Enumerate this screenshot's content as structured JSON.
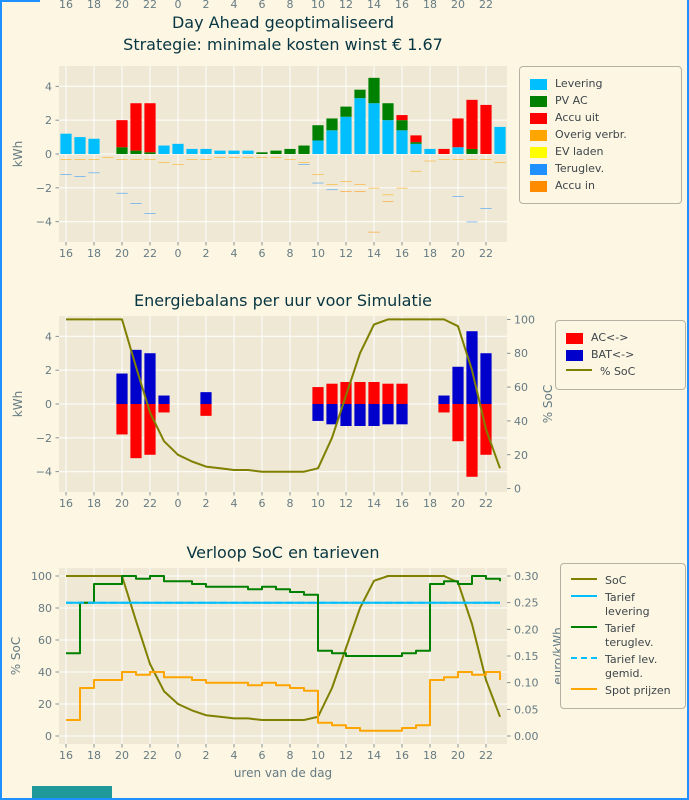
{
  "window": {
    "border_color": "#1e90ff",
    "partial_button_color": "#20999b"
  },
  "figure": {
    "bg": "#fdf6e3",
    "axes_bg": "#eee8d5",
    "grid_color": "#ffffff",
    "text_color": "#657b83",
    "title_color": "#073642"
  },
  "top_cropped_axis": {
    "tick_labels": [
      "16",
      "18",
      "20",
      "22",
      "0",
      "2",
      "4",
      "6",
      "8",
      "10",
      "12",
      "14",
      "16",
      "18",
      "20",
      "22"
    ]
  },
  "chart_data": [
    {
      "type": "bar",
      "stacked": true,
      "title": "Day Ahead geoptimaliseerd",
      "subtitle": "Strategie: minimale kosten winst € 1.67",
      "ylabel": "kWh",
      "ylim": [
        -5.2,
        5.2
      ],
      "yticks": [
        -4,
        -2,
        0,
        2,
        4
      ],
      "hours": [
        16,
        17,
        18,
        19,
        20,
        21,
        22,
        23,
        0,
        1,
        2,
        3,
        4,
        5,
        6,
        7,
        8,
        9,
        10,
        11,
        12,
        13,
        14,
        15,
        16,
        17,
        18,
        19,
        20,
        21,
        22,
        23
      ],
      "xtick_labels": [
        "16",
        "18",
        "20",
        "22",
        "0",
        "2",
        "4",
        "6",
        "8",
        "10",
        "12",
        "14",
        "16",
        "18",
        "20",
        "22"
      ],
      "series": [
        {
          "name": "Levering",
          "color": "#00bfff",
          "values": [
            1.2,
            1.0,
            0.9,
            0,
            0,
            0,
            0,
            0.5,
            0.6,
            0.3,
            0.3,
            0.2,
            0.2,
            0.2,
            0,
            0,
            0,
            0,
            0.8,
            1.4,
            2.2,
            3.3,
            3.0,
            2.0,
            1.4,
            0.6,
            0.3,
            0,
            0.4,
            0,
            0,
            1.6
          ]
        },
        {
          "name": "PV AC",
          "color": "#008000",
          "values": [
            0,
            0,
            0,
            0,
            0.4,
            0.2,
            0.1,
            0,
            0,
            0,
            0,
            0,
            0,
            0,
            0.1,
            0.2,
            0.3,
            0.5,
            0.9,
            0.7,
            0.6,
            0.5,
            1.5,
            1.0,
            0.6,
            0.1,
            0,
            0,
            0,
            0.3,
            0,
            0
          ]
        },
        {
          "name": "Accu uit",
          "color": "#ff0000",
          "values": [
            0,
            0,
            0,
            0,
            1.6,
            2.8,
            2.9,
            0,
            0,
            0,
            0,
            0,
            0,
            0,
            0,
            0,
            0,
            0,
            0,
            0,
            0,
            0,
            0,
            0,
            0.3,
            0.4,
            0,
            0.3,
            1.7,
            2.9,
            2.9,
            0
          ]
        },
        {
          "name": "Overig verbr.",
          "color": "#ffa500",
          "values": [
            -0.3,
            -0.3,
            -0.3,
            -0.2,
            -0.3,
            -0.3,
            -0.3,
            -0.5,
            -0.6,
            -0.3,
            -0.3,
            -0.2,
            -0.2,
            -0.2,
            -0.2,
            -0.2,
            -0.3,
            -0.5,
            -1.2,
            -1.8,
            -1.6,
            -1.8,
            -2.0,
            -2.4,
            -2.0,
            -1.0,
            -0.4,
            -0.3,
            -0.3,
            -0.3,
            -0.3,
            -0.5
          ]
        },
        {
          "name": "EV laden",
          "color": "#ffff00",
          "values": [
            0,
            0,
            0,
            0,
            0,
            0,
            0,
            0,
            0,
            0,
            0,
            0,
            0,
            0,
            0,
            0,
            0,
            0,
            0,
            0,
            0,
            0,
            0,
            0,
            0,
            0,
            0,
            0,
            0,
            0,
            0,
            0
          ]
        },
        {
          "name": "Teruglev.",
          "color": "#1e90ff",
          "values": [
            -0.9,
            -1.0,
            -0.8,
            0,
            -2.0,
            -2.6,
            -3.2,
            0,
            0,
            0,
            0,
            0,
            0,
            0,
            0,
            0,
            0,
            -0.1,
            -0.5,
            -0.3,
            0,
            0,
            0,
            0,
            0,
            0,
            0,
            0,
            -2.2,
            -3.7,
            -2.9,
            0
          ]
        },
        {
          "name": "Accu in",
          "color": "#ff8c00",
          "values": [
            0,
            0,
            0,
            0,
            0,
            0,
            0,
            0,
            0,
            0,
            0,
            0,
            0,
            0,
            0,
            0,
            0,
            0,
            0,
            0,
            -0.6,
            -0.4,
            -2.6,
            -0.4,
            0,
            0,
            0,
            0,
            0,
            0,
            0,
            0
          ]
        }
      ]
    },
    {
      "type": "bar+line",
      "title": "Energiebalans per uur voor Simulatie",
      "ylabel": "kWh",
      "ylabel_right": "% SoC",
      "ylim": [
        -5.2,
        5.2
      ],
      "yticks": [
        -4,
        -2,
        0,
        2,
        4
      ],
      "ylim_right": [
        -2,
        102
      ],
      "yticks_right": [
        0,
        20,
        40,
        60,
        80,
        100
      ],
      "hours": [
        16,
        17,
        18,
        19,
        20,
        21,
        22,
        23,
        0,
        1,
        2,
        3,
        4,
        5,
        6,
        7,
        8,
        9,
        10,
        11,
        12,
        13,
        14,
        15,
        16,
        17,
        18,
        19,
        20,
        21,
        22,
        23
      ],
      "xtick_labels": [
        "16",
        "18",
        "20",
        "22",
        "0",
        "2",
        "4",
        "6",
        "8",
        "10",
        "12",
        "14",
        "16",
        "18",
        "20",
        "22"
      ],
      "series": [
        {
          "name": "AC<->",
          "color": "#ff0000",
          "type": "bar",
          "values": [
            0,
            0,
            0,
            0,
            -1.8,
            -3.2,
            -3.0,
            -0.5,
            0,
            0,
            -0.7,
            0,
            0,
            0,
            0,
            0,
            0,
            0,
            1.0,
            1.2,
            1.3,
            1.3,
            1.3,
            1.2,
            1.2,
            0,
            0,
            -0.5,
            -2.2,
            -4.3,
            -3.0,
            0
          ]
        },
        {
          "name": "BAT<->",
          "color": "#0000cd",
          "type": "bar",
          "values": [
            0,
            0,
            0,
            0,
            1.8,
            3.2,
            3.0,
            0.5,
            0,
            0,
            0.7,
            0,
            0,
            0,
            0,
            0,
            0,
            0,
            -1.0,
            -1.2,
            -1.3,
            -1.3,
            -1.3,
            -1.2,
            -1.2,
            0,
            0,
            0.5,
            2.2,
            4.3,
            3.0,
            0
          ]
        },
        {
          "name": "% SoC",
          "color": "#808000",
          "type": "line",
          "axis": "right",
          "values": [
            100,
            100,
            100,
            100,
            100,
            72,
            45,
            28,
            20,
            16,
            13,
            12,
            11,
            11,
            10,
            10,
            10,
            10,
            12,
            30,
            55,
            80,
            97,
            100,
            100,
            100,
            100,
            100,
            96,
            70,
            35,
            12
          ]
        }
      ]
    },
    {
      "type": "line",
      "title": "Verloop SoC en tarieven",
      "ylabel": "% SoC",
      "ylabel_right": "euro/kWh",
      "xlabel": "uren van de dag",
      "ylim": [
        -5,
        105
      ],
      "yticks": [
        0,
        20,
        40,
        60,
        80,
        100
      ],
      "ylim_right": [
        -0.015,
        0.315
      ],
      "yticks_right": [
        0.0,
        0.05,
        0.1,
        0.15,
        0.2,
        0.25,
        0.3
      ],
      "ytick_right_decimals": 2,
      "hours": [
        16,
        17,
        18,
        19,
        20,
        21,
        22,
        23,
        0,
        1,
        2,
        3,
        4,
        5,
        6,
        7,
        8,
        9,
        10,
        11,
        12,
        13,
        14,
        15,
        16,
        17,
        18,
        19,
        20,
        21,
        22,
        23
      ],
      "xtick_labels": [
        "16",
        "18",
        "20",
        "22",
        "0",
        "2",
        "4",
        "6",
        "8",
        "10",
        "12",
        "14",
        "16",
        "18",
        "20",
        "22"
      ],
      "series": [
        {
          "name": "SoC",
          "color": "#808000",
          "axis": "left",
          "style": "solid",
          "step": false,
          "values": [
            100,
            100,
            100,
            100,
            100,
            72,
            45,
            28,
            20,
            16,
            13,
            12,
            11,
            11,
            10,
            10,
            10,
            10,
            12,
            30,
            55,
            80,
            97,
            100,
            100,
            100,
            100,
            100,
            96,
            70,
            35,
            12
          ]
        },
        {
          "name": "Tarief levering",
          "label_lines": [
            "Tarief",
            "levering"
          ],
          "color": "#00bfff",
          "axis": "right",
          "style": "solid",
          "step": true,
          "values": [
            0.25,
            0.25,
            0.25,
            0.25,
            0.25,
            0.25,
            0.25,
            0.25,
            0.25,
            0.25,
            0.25,
            0.25,
            0.25,
            0.25,
            0.25,
            0.25,
            0.25,
            0.25,
            0.25,
            0.25,
            0.25,
            0.25,
            0.25,
            0.25,
            0.25,
            0.25,
            0.25,
            0.25,
            0.25,
            0.25,
            0.25,
            0.25
          ]
        },
        {
          "name": "Tarief teruglev.",
          "label_lines": [
            "Tarief",
            "teruglev."
          ],
          "color": "#008000",
          "axis": "right",
          "style": "solid",
          "step": true,
          "values": [
            0.155,
            0.25,
            0.285,
            0.285,
            0.3,
            0.295,
            0.3,
            0.29,
            0.29,
            0.285,
            0.28,
            0.28,
            0.28,
            0.275,
            0.28,
            0.275,
            0.27,
            0.265,
            0.16,
            0.155,
            0.15,
            0.15,
            0.15,
            0.15,
            0.155,
            0.16,
            0.285,
            0.29,
            0.285,
            0.3,
            0.295,
            0.29
          ]
        },
        {
          "name": "Tarief lev. gemid.",
          "label_lines": [
            "Tarief lev.",
            "gemid."
          ],
          "color": "#00bfff",
          "axis": "right",
          "style": "dashed",
          "step": false,
          "values": [
            0.25,
            0.25,
            0.25,
            0.25,
            0.25,
            0.25,
            0.25,
            0.25,
            0.25,
            0.25,
            0.25,
            0.25,
            0.25,
            0.25,
            0.25,
            0.25,
            0.25,
            0.25,
            0.25,
            0.25,
            0.25,
            0.25,
            0.25,
            0.25,
            0.25,
            0.25,
            0.25,
            0.25,
            0.25,
            0.25,
            0.25,
            0.25
          ]
        },
        {
          "name": "Spot prijzen",
          "color": "#ffa500",
          "axis": "right",
          "style": "solid",
          "step": true,
          "values": [
            0.03,
            0.09,
            0.105,
            0.105,
            0.12,
            0.115,
            0.12,
            0.11,
            0.11,
            0.105,
            0.1,
            0.1,
            0.1,
            0.095,
            0.1,
            0.095,
            0.09,
            0.085,
            0.025,
            0.02,
            0.015,
            0.01,
            0.01,
            0.01,
            0.015,
            0.02,
            0.105,
            0.11,
            0.12,
            0.115,
            0.12,
            0.105
          ]
        }
      ]
    }
  ]
}
